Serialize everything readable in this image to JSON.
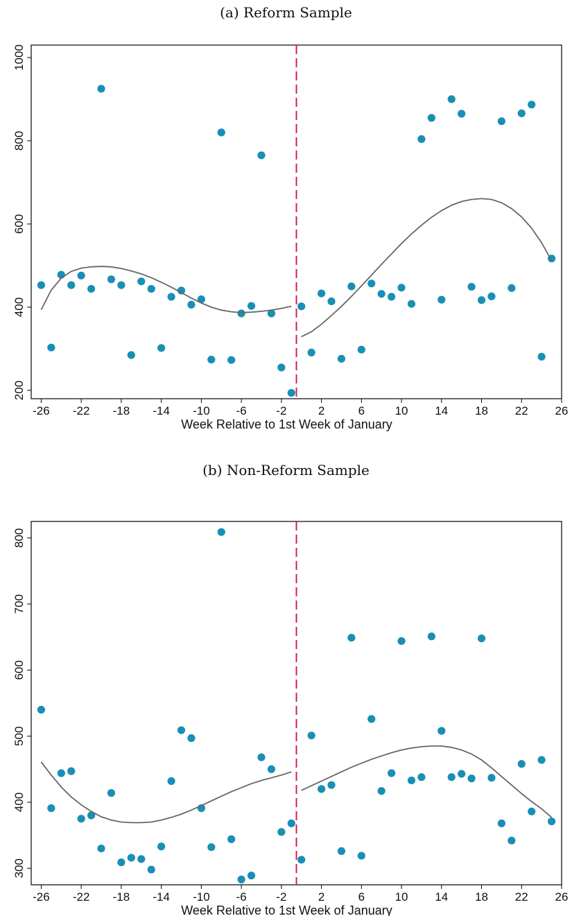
{
  "chart_data": [
    {
      "type": "scatter",
      "title": "(a) Reform Sample",
      "xlabel": "Week Relative to 1st Week of January",
      "ylabel": "",
      "xlim": [
        -27,
        26
      ],
      "ylim": [
        180,
        1030
      ],
      "xticks": [
        -26,
        -22,
        -18,
        -14,
        -10,
        -6,
        -2,
        2,
        6,
        10,
        14,
        18,
        22,
        26
      ],
      "yticks": [
        200,
        400,
        600,
        800,
        1000
      ],
      "cutoff_x": -0.5,
      "point_color": "#1a8fb5",
      "fit_color": "#666666",
      "cutoff_color": "#cc1f4d",
      "points": [
        [
          -26,
          453
        ],
        [
          -25,
          303
        ],
        [
          -24,
          478
        ],
        [
          -23,
          453
        ],
        [
          -22,
          476
        ],
        [
          -21,
          444
        ],
        [
          -20,
          925
        ],
        [
          -19,
          467
        ],
        [
          -18,
          453
        ],
        [
          -17,
          285
        ],
        [
          -16,
          462
        ],
        [
          -15,
          444
        ],
        [
          -14,
          302
        ],
        [
          -13,
          425
        ],
        [
          -12,
          440
        ],
        [
          -11,
          406
        ],
        [
          -10,
          419
        ],
        [
          -9,
          274
        ],
        [
          -8,
          820
        ],
        [
          -7,
          273
        ],
        [
          -6,
          385
        ],
        [
          -5,
          403
        ],
        [
          -4,
          765
        ],
        [
          -3,
          385
        ],
        [
          -2,
          255
        ],
        [
          -1,
          194
        ],
        [
          0,
          402
        ],
        [
          1,
          291
        ],
        [
          2,
          433
        ],
        [
          3,
          414
        ],
        [
          4,
          276
        ],
        [
          5,
          450
        ],
        [
          6,
          298
        ],
        [
          7,
          457
        ],
        [
          8,
          432
        ],
        [
          9,
          425
        ],
        [
          10,
          447
        ],
        [
          11,
          408
        ],
        [
          12,
          804
        ],
        [
          13,
          855
        ],
        [
          14,
          418
        ],
        [
          15,
          900
        ],
        [
          16,
          865
        ],
        [
          17,
          449
        ],
        [
          18,
          417
        ],
        [
          19,
          426
        ],
        [
          20,
          847
        ],
        [
          21,
          446
        ],
        [
          22,
          866
        ],
        [
          23,
          887
        ],
        [
          24,
          281
        ],
        [
          25,
          517
        ]
      ],
      "fit_left": [
        [
          -26,
          394
        ],
        [
          -25,
          441
        ],
        [
          -24,
          470
        ],
        [
          -23,
          486
        ],
        [
          -22,
          494
        ],
        [
          -21,
          497
        ],
        [
          -20,
          498
        ],
        [
          -19,
          497
        ],
        [
          -18,
          493
        ],
        [
          -17,
          487
        ],
        [
          -16,
          480
        ],
        [
          -15,
          471
        ],
        [
          -14,
          460
        ],
        [
          -13,
          448
        ],
        [
          -12,
          435
        ],
        [
          -11,
          422
        ],
        [
          -10,
          410
        ],
        [
          -9,
          400
        ],
        [
          -8,
          393
        ],
        [
          -7,
          389
        ],
        [
          -6,
          387
        ],
        [
          -5,
          388
        ],
        [
          -4,
          390
        ],
        [
          -3,
          393
        ],
        [
          -2,
          397
        ],
        [
          -1,
          402
        ]
      ],
      "fit_right": [
        [
          0,
          329
        ],
        [
          1,
          341
        ],
        [
          2,
          359
        ],
        [
          3,
          380
        ],
        [
          4,
          402
        ],
        [
          5,
          426
        ],
        [
          6,
          451
        ],
        [
          7,
          477
        ],
        [
          8,
          503
        ],
        [
          9,
          528
        ],
        [
          10,
          553
        ],
        [
          11,
          576
        ],
        [
          12,
          597
        ],
        [
          13,
          616
        ],
        [
          14,
          632
        ],
        [
          15,
          645
        ],
        [
          16,
          654
        ],
        [
          17,
          659
        ],
        [
          18,
          661
        ],
        [
          19,
          659
        ],
        [
          20,
          651
        ],
        [
          21,
          637
        ],
        [
          22,
          617
        ],
        [
          23,
          590
        ],
        [
          24,
          555
        ],
        [
          25,
          512
        ]
      ]
    },
    {
      "type": "scatter",
      "title": "(b) Non-Reform Sample",
      "xlabel": "Week Relative to 1st Week of January",
      "ylabel": "",
      "xlim": [
        -27,
        26
      ],
      "ylim": [
        275,
        825
      ],
      "xticks": [
        -26,
        -22,
        -18,
        -14,
        -10,
        -6,
        -2,
        2,
        6,
        10,
        14,
        18,
        22,
        26
      ],
      "yticks": [
        300,
        400,
        500,
        600,
        700,
        800
      ],
      "cutoff_x": -0.5,
      "point_color": "#1a8fb5",
      "fit_color": "#666666",
      "cutoff_color": "#cc1f4d",
      "points": [
        [
          -26,
          540
        ],
        [
          -25,
          391
        ],
        [
          -24,
          444
        ],
        [
          -23,
          447
        ],
        [
          -22,
          375
        ],
        [
          -21,
          380
        ],
        [
          -20,
          330
        ],
        [
          -19,
          414
        ],
        [
          -18,
          309
        ],
        [
          -17,
          316
        ],
        [
          -16,
          314
        ],
        [
          -15,
          298
        ],
        [
          -14,
          333
        ],
        [
          -13,
          432
        ],
        [
          -12,
          509
        ],
        [
          -11,
          497
        ],
        [
          -10,
          391
        ],
        [
          -9,
          332
        ],
        [
          -8,
          809
        ],
        [
          -7,
          344
        ],
        [
          -6,
          283
        ],
        [
          -5,
          289
        ],
        [
          -4,
          468
        ],
        [
          -3,
          450
        ],
        [
          -2,
          355
        ],
        [
          -1,
          368
        ],
        [
          0,
          313
        ],
        [
          1,
          501
        ],
        [
          2,
          420
        ],
        [
          3,
          426
        ],
        [
          4,
          326
        ],
        [
          5,
          649
        ],
        [
          6,
          319
        ],
        [
          7,
          526
        ],
        [
          8,
          417
        ],
        [
          9,
          444
        ],
        [
          10,
          644
        ],
        [
          11,
          433
        ],
        [
          12,
          438
        ],
        [
          13,
          651
        ],
        [
          14,
          508
        ],
        [
          15,
          438
        ],
        [
          16,
          443
        ],
        [
          17,
          436
        ],
        [
          18,
          648
        ],
        [
          19,
          437
        ],
        [
          20,
          368
        ],
        [
          21,
          342
        ],
        [
          22,
          458
        ],
        [
          23,
          386
        ],
        [
          24,
          464
        ],
        [
          25,
          371
        ]
      ],
      "fit_left": [
        [
          -26,
          461
        ],
        [
          -25,
          441
        ],
        [
          -24,
          423
        ],
        [
          -23,
          408
        ],
        [
          -22,
          396
        ],
        [
          -21,
          386
        ],
        [
          -20,
          378
        ],
        [
          -19,
          373
        ],
        [
          -18,
          370
        ],
        [
          -17,
          369
        ],
        [
          -16,
          369
        ],
        [
          -15,
          370
        ],
        [
          -14,
          373
        ],
        [
          -13,
          377
        ],
        [
          -12,
          382
        ],
        [
          -11,
          388
        ],
        [
          -10,
          395
        ],
        [
          -9,
          402
        ],
        [
          -8,
          409
        ],
        [
          -7,
          416
        ],
        [
          -6,
          422
        ],
        [
          -5,
          428
        ],
        [
          -4,
          433
        ],
        [
          -3,
          437
        ],
        [
          -2,
          441
        ],
        [
          -1,
          446
        ]
      ],
      "fit_right": [
        [
          0,
          418
        ],
        [
          1,
          425
        ],
        [
          2,
          432
        ],
        [
          3,
          439
        ],
        [
          4,
          446
        ],
        [
          5,
          453
        ],
        [
          6,
          459
        ],
        [
          7,
          465
        ],
        [
          8,
          470
        ],
        [
          9,
          475
        ],
        [
          10,
          479
        ],
        [
          11,
          482
        ],
        [
          12,
          484
        ],
        [
          13,
          485
        ],
        [
          14,
          485
        ],
        [
          15,
          483
        ],
        [
          16,
          479
        ],
        [
          17,
          473
        ],
        [
          18,
          464
        ],
        [
          19,
          452
        ],
        [
          20,
          439
        ],
        [
          21,
          426
        ],
        [
          22,
          413
        ],
        [
          23,
          401
        ],
        [
          24,
          390
        ],
        [
          25,
          377
        ]
      ]
    }
  ]
}
